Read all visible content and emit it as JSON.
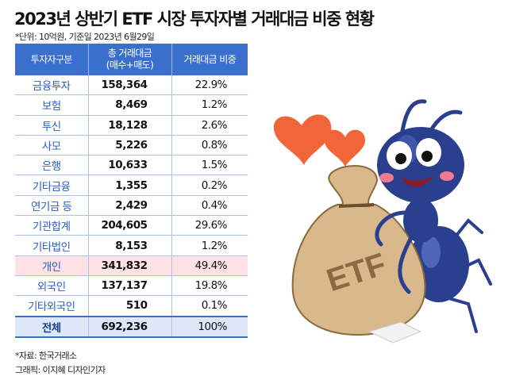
{
  "header": {
    "title": "2023년 상반기 ETF 시장 투자자별 거래대금 비중 현황",
    "unit_note": "*단위: 10억원, 기준일 2023년 6월29일"
  },
  "table": {
    "columns": [
      "투자자구분",
      "총 거래대금",
      "(매수+매도)",
      "거래대금 비중"
    ],
    "rows": [
      {
        "category": "금융투자",
        "amount": "158,364",
        "share": "22.9%"
      },
      {
        "category": "보험",
        "amount": "8,469",
        "share": "1.2%"
      },
      {
        "category": "투신",
        "amount": "18,128",
        "share": "2.6%"
      },
      {
        "category": "사모",
        "amount": "5,226",
        "share": "0.8%"
      },
      {
        "category": "은행",
        "amount": "10,633",
        "share": "1.5%"
      },
      {
        "category": "기타금융",
        "amount": "1,355",
        "share": "0.2%"
      },
      {
        "category": "연기금 등",
        "amount": "2,429",
        "share": "0.4%"
      },
      {
        "category": "기관합계",
        "amount": "204,605",
        "share": "29.6%"
      },
      {
        "category": "기타법인",
        "amount": "8,153",
        "share": "1.2%"
      },
      {
        "category": "개인",
        "amount": "341,832",
        "share": "49.4%"
      },
      {
        "category": "외국인",
        "amount": "137,137",
        "share": "19.8%"
      },
      {
        "category": "기타외국인",
        "amount": "510",
        "share": "0.1%"
      }
    ],
    "total": {
      "category": "전체",
      "amount": "692,236",
      "share": "100%"
    }
  },
  "illustration": {
    "bag_label": "ETF",
    "icon": "ant-holding-money-bag-icon"
  },
  "footer": {
    "source": "*자료: 한국거래소",
    "credit": "그래픽: 이지혜 디자인기자"
  },
  "colors": {
    "header_blue": "#3a70cc",
    "category_text": "#2a5fbd",
    "highlight_pink": "#fde1e4",
    "total_blue": "#dde7f8",
    "heart_orange": "#f0663a",
    "ant_navy": "#2b3f8f",
    "bag_tan": "#d9b98b"
  }
}
